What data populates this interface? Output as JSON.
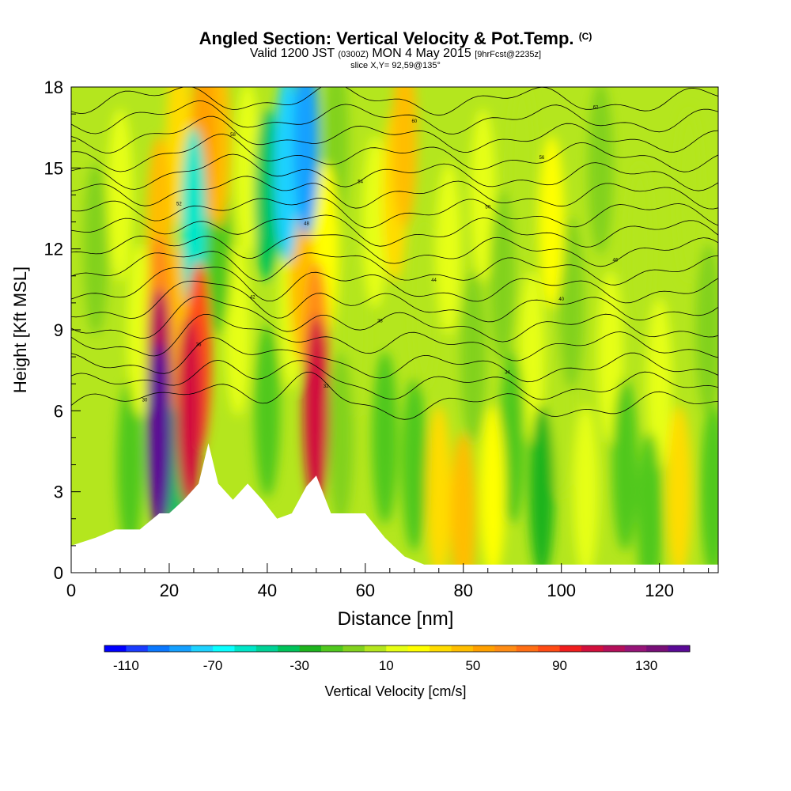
{
  "header": {
    "title": "Angled Section: Vertical Velocity & Pot.Temp.",
    "title_suffix": "(C)",
    "valid_prefix": "Valid 1200 JST",
    "valid_utc": "(0300Z)",
    "valid_date": "MON 4 May 2015",
    "forecast": "[9hrFcst@2235z]",
    "slice": "slice X,Y= 92,59@135°"
  },
  "chart_data": {
    "type": "heatmap",
    "xlabel": "Distance [nm]",
    "ylabel": "Height [Kft MSL]",
    "xlim": [
      0,
      132
    ],
    "ylim": [
      0,
      18
    ],
    "x_ticks": [
      0,
      20,
      40,
      60,
      80,
      100,
      120
    ],
    "y_ticks": [
      0,
      3,
      6,
      9,
      12,
      15,
      18
    ],
    "colorbar": {
      "label": "Vertical Velocity [cm/s]",
      "tick_labels": [
        "-110",
        "-70",
        "-30",
        "10",
        "50",
        "90",
        "130"
      ],
      "min": -120,
      "max": 150,
      "step": 10,
      "colors": [
        "#0000ff",
        "#1a3cff",
        "#0a78ff",
        "#14a0ff",
        "#1ed2ff",
        "#0affff",
        "#00e6c8",
        "#00d296",
        "#00c35a",
        "#1eb41e",
        "#50c81e",
        "#82d21e",
        "#b4e61e",
        "#e6ff14",
        "#ffff00",
        "#ffdc00",
        "#ffbe00",
        "#ffa000",
        "#ff8c14",
        "#ff6e14",
        "#ff4b14",
        "#f01e1e",
        "#d20f3c",
        "#b40f5a",
        "#961478",
        "#780f78",
        "#5a0a96"
      ]
    },
    "terrain_profile": {
      "x_nm": [
        0,
        5,
        9,
        14,
        18,
        20,
        23,
        26,
        28,
        30,
        33,
        36,
        39,
        42,
        45,
        48,
        50,
        53,
        56,
        60,
        64,
        68,
        72,
        80,
        100,
        132
      ],
      "height_kft": [
        1.0,
        1.3,
        1.6,
        1.6,
        2.2,
        2.2,
        2.7,
        3.3,
        4.8,
        3.3,
        2.7,
        3.3,
        2.7,
        2.0,
        2.2,
        3.2,
        3.6,
        2.2,
        2.2,
        2.2,
        1.3,
        0.6,
        0.3,
        0.3,
        0.3,
        0.3
      ]
    },
    "vertical_velocity_cells": [
      {
        "x": 0,
        "y": 12,
        "v": 5
      },
      {
        "x": 5,
        "y": 12,
        "v": -5
      },
      {
        "x": 10,
        "y": 14,
        "v": 10
      },
      {
        "x": 12,
        "y": 4,
        "v": -15
      },
      {
        "x": 14,
        "y": 9,
        "v": 15
      },
      {
        "x": 18,
        "y": 5,
        "v": 140
      },
      {
        "x": 18,
        "y": 7,
        "v": 110
      },
      {
        "x": 18,
        "y": 9,
        "v": 60
      },
      {
        "x": 18,
        "y": 13,
        "v": 40
      },
      {
        "x": 22,
        "y": 4,
        "v": -40
      },
      {
        "x": 22,
        "y": 9,
        "v": 40
      },
      {
        "x": 24,
        "y": 6,
        "v": 100
      },
      {
        "x": 26,
        "y": 8,
        "v": 80
      },
      {
        "x": 22,
        "y": 16,
        "v": 35
      },
      {
        "x": 25,
        "y": 13,
        "v": -60
      },
      {
        "x": 27,
        "y": 16,
        "v": 50
      },
      {
        "x": 30,
        "y": 12,
        "v": -20
      },
      {
        "x": 30,
        "y": 16,
        "v": 45
      },
      {
        "x": 34,
        "y": 9,
        "v": 15
      },
      {
        "x": 36,
        "y": 15,
        "v": 10
      },
      {
        "x": 40,
        "y": 14,
        "v": -40
      },
      {
        "x": 40,
        "y": 6,
        "v": -20
      },
      {
        "x": 44,
        "y": 15,
        "v": -75
      },
      {
        "x": 45,
        "y": 10,
        "v": 15
      },
      {
        "x": 47,
        "y": 11,
        "v": 40
      },
      {
        "x": 48,
        "y": 16,
        "v": -90
      },
      {
        "x": 50,
        "y": 6,
        "v": 100
      },
      {
        "x": 50,
        "y": 8,
        "v": 60
      },
      {
        "x": 52,
        "y": 12,
        "v": 20
      },
      {
        "x": 54,
        "y": 16,
        "v": -10
      },
      {
        "x": 55,
        "y": 5,
        "v": -10
      },
      {
        "x": 58,
        "y": 9,
        "v": 5
      },
      {
        "x": 62,
        "y": 13,
        "v": 15
      },
      {
        "x": 64,
        "y": 5,
        "v": -15
      },
      {
        "x": 66,
        "y": 14,
        "v": 30
      },
      {
        "x": 68,
        "y": 16,
        "v": 40
      },
      {
        "x": 70,
        "y": 4,
        "v": -20
      },
      {
        "x": 72,
        "y": 10,
        "v": 0
      },
      {
        "x": 75,
        "y": 3,
        "v": 30
      },
      {
        "x": 77,
        "y": 12,
        "v": 10
      },
      {
        "x": 80,
        "y": 2,
        "v": 40
      },
      {
        "x": 82,
        "y": 8,
        "v": -5
      },
      {
        "x": 84,
        "y": 14,
        "v": 10
      },
      {
        "x": 86,
        "y": 3,
        "v": 25
      },
      {
        "x": 88,
        "y": 11,
        "v": -10
      },
      {
        "x": 90,
        "y": 5,
        "v": -20
      },
      {
        "x": 92,
        "y": 15,
        "v": 5
      },
      {
        "x": 94,
        "y": 8,
        "v": 10
      },
      {
        "x": 96,
        "y": 3,
        "v": -25
      },
      {
        "x": 98,
        "y": 13,
        "v": 25
      },
      {
        "x": 100,
        "y": 6,
        "v": 5
      },
      {
        "x": 102,
        "y": 10,
        "v": -10
      },
      {
        "x": 105,
        "y": 3,
        "v": 10
      },
      {
        "x": 108,
        "y": 15,
        "v": -5
      },
      {
        "x": 110,
        "y": 8,
        "v": 15
      },
      {
        "x": 113,
        "y": 4,
        "v": -20
      },
      {
        "x": 116,
        "y": 12,
        "v": 5
      },
      {
        "x": 118,
        "y": 2,
        "v": -20
      },
      {
        "x": 120,
        "y": 7,
        "v": 10
      },
      {
        "x": 124,
        "y": 3,
        "v": 30
      },
      {
        "x": 126,
        "y": 14,
        "v": 0
      },
      {
        "x": 130,
        "y": 9,
        "v": -10
      },
      {
        "x": 131,
        "y": 3,
        "v": -15
      }
    ],
    "potential_temperature_contours": {
      "interval_c": 2,
      "levels": [
        {
          "base_kft": 6.2,
          "label": "30"
        },
        {
          "base_kft": 6.9,
          "label": "32"
        },
        {
          "base_kft": 7.6,
          "label": "34"
        },
        {
          "base_kft": 8.4,
          "label": "36"
        },
        {
          "base_kft": 9.1,
          "label": "38"
        },
        {
          "base_kft": 9.8,
          "label": "40"
        },
        {
          "base_kft": 10.5,
          "label": "42"
        },
        {
          "base_kft": 11.2,
          "label": "44"
        },
        {
          "base_kft": 11.9,
          "label": "46"
        },
        {
          "base_kft": 12.6,
          "label": "48"
        },
        {
          "base_kft": 13.3,
          "label": "50"
        },
        {
          "base_kft": 14.0,
          "label": "52"
        },
        {
          "base_kft": 14.7,
          "label": "54"
        },
        {
          "base_kft": 15.4,
          "label": "56"
        },
        {
          "base_kft": 16.1,
          "label": "58"
        },
        {
          "base_kft": 16.8,
          "label": "60"
        },
        {
          "base_kft": 17.5,
          "label": "62"
        }
      ]
    }
  }
}
